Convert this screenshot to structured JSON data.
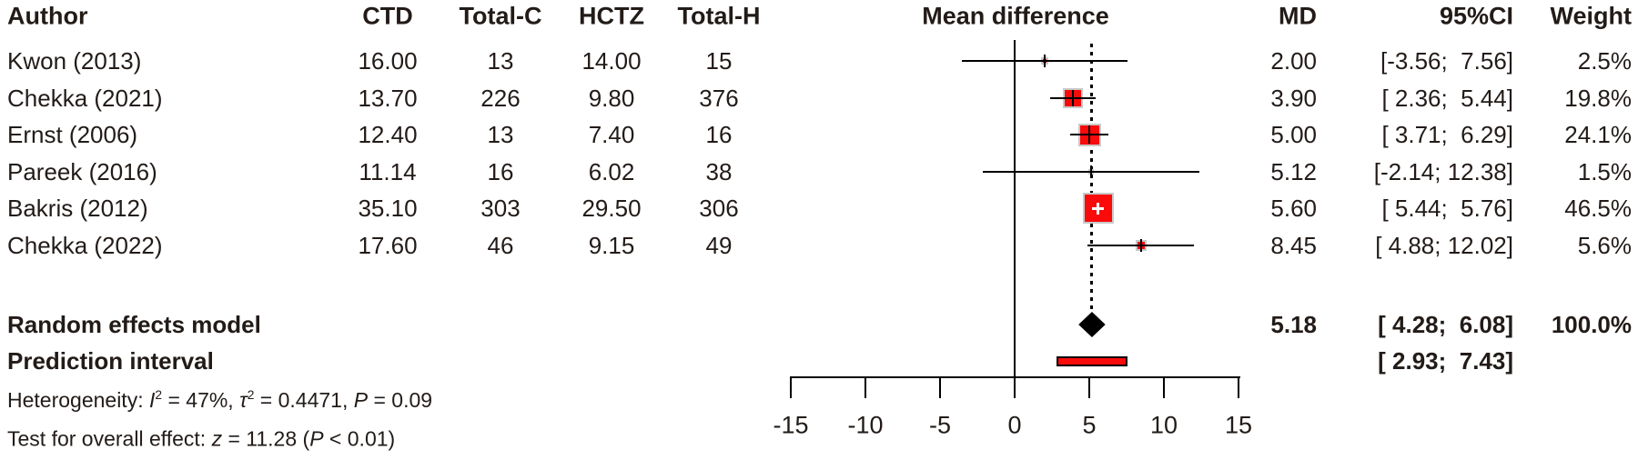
{
  "headers": {
    "author": "Author",
    "ctd": "CTD",
    "total_c": "Total-C",
    "hctz": "HCTZ",
    "total_h": "Total-H",
    "plot": "Mean difference",
    "md": "MD",
    "ci": "95%CI",
    "weight": "Weight"
  },
  "chart_data": {
    "type": "forest",
    "x_axis": {
      "ticks": [
        -15,
        -10,
        -5,
        0,
        5,
        10,
        15
      ],
      "xlim": [
        -15,
        15
      ],
      "zero_ref": 0,
      "pooled_ref": 5.18,
      "grid": false
    },
    "studies": [
      {
        "author": "Kwon (2013)",
        "ctd": "16.00",
        "total_c": "13",
        "hctz": "14.00",
        "total_h": "15",
        "md": 2.0,
        "ci_lo": -3.56,
        "ci_hi": 7.56,
        "weight_pct": 2.5,
        "md_label": "2.00",
        "ci_label": "[-3.56;  7.56]",
        "weight_label": "2.5%"
      },
      {
        "author": "Chekka (2021)",
        "ctd": "13.70",
        "total_c": "226",
        "hctz": "9.80",
        "total_h": "376",
        "md": 3.9,
        "ci_lo": 2.36,
        "ci_hi": 5.44,
        "weight_pct": 19.8,
        "md_label": "3.90",
        "ci_label": "[ 2.36;  5.44]",
        "weight_label": "19.8%"
      },
      {
        "author": "Ernst (2006)",
        "ctd": "12.40",
        "total_c": "13",
        "hctz": "7.40",
        "total_h": "16",
        "md": 5.0,
        "ci_lo": 3.71,
        "ci_hi": 6.29,
        "weight_pct": 24.1,
        "md_label": "5.00",
        "ci_label": "[ 3.71;  6.29]",
        "weight_label": "24.1%"
      },
      {
        "author": "Pareek (2016)",
        "ctd": "11.14",
        "total_c": "16",
        "hctz": "6.02",
        "total_h": "38",
        "md": 5.12,
        "ci_lo": -2.14,
        "ci_hi": 12.38,
        "weight_pct": 1.5,
        "md_label": "5.12",
        "ci_label": "[-2.14; 12.38]",
        "weight_label": "1.5%"
      },
      {
        "author": "Bakris (2012)",
        "ctd": "35.10",
        "total_c": "303",
        "hctz": "29.50",
        "total_h": "306",
        "md": 5.6,
        "ci_lo": 5.44,
        "ci_hi": 5.76,
        "weight_pct": 46.5,
        "md_label": "5.60",
        "ci_label": "[ 5.44;  5.76]",
        "weight_label": "46.5%"
      },
      {
        "author": "Chekka (2022)",
        "ctd": "17.60",
        "total_c": "46",
        "hctz": "9.15",
        "total_h": "49",
        "md": 8.45,
        "ci_lo": 4.88,
        "ci_hi": 12.02,
        "weight_pct": 5.6,
        "md_label": "8.45",
        "ci_label": "[ 4.88; 12.02]",
        "weight_label": "5.6%"
      }
    ],
    "summary": {
      "random_effects": {
        "label": "Random effects model",
        "md": 5.18,
        "ci_lo": 4.28,
        "ci_hi": 6.08,
        "weight_pct": 100.0,
        "md_label": "5.18",
        "ci_label": "[ 4.28;  6.08]",
        "weight_label": "100.0%"
      },
      "prediction_interval": {
        "label": "Prediction interval",
        "ci_lo": 2.93,
        "ci_hi": 7.43,
        "ci_label": "[ 2.93;  7.43]"
      }
    },
    "footnotes": {
      "heterogeneity_parts": [
        [
          "Heterogeneity: "
        ],
        [
          "I",
          "i"
        ],
        [
          "2",
          "sup"
        ],
        [
          " = 47%, "
        ],
        [
          "τ",
          "i"
        ],
        [
          "2",
          "sup"
        ],
        [
          " = 0.4471, "
        ],
        [
          "P",
          "i"
        ],
        [
          " = 0.09"
        ]
      ],
      "test_parts": [
        [
          "Test for overall effect: "
        ],
        [
          "z",
          "i"
        ],
        [
          " = 11.28 ("
        ],
        [
          "P",
          "i"
        ],
        [
          " < 0.01)"
        ]
      ]
    }
  },
  "colors": {
    "marker_fill": "#f90b0b",
    "marker_border": "#c9c9c9",
    "diamond": "#000000",
    "line": "#000000",
    "text": "#221b18",
    "prediction_fill": "#f90b0b",
    "prediction_border": "#000000",
    "background": "#ffffff"
  }
}
